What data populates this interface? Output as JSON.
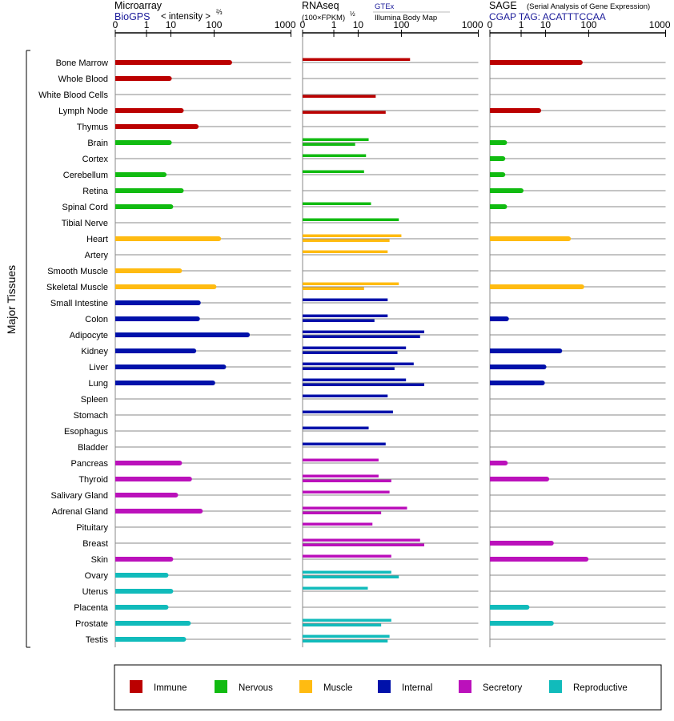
{
  "chart_data": {
    "type": "bar",
    "y_axis_label": "Major Tissues",
    "x_ticks": [
      "0",
      "1",
      "10",
      "100",
      "1000"
    ],
    "categories": [
      "Bone Marrow",
      "Whole Blood",
      "White Blood Cells",
      "Lymph Node",
      "Thymus",
      "Brain",
      "Cortex",
      "Cerebellum",
      "Retina",
      "Spinal Cord",
      "Tibial Nerve",
      "Heart",
      "Artery",
      "Smooth Muscle",
      "Skeletal Muscle",
      "Small Intestine",
      "Colon",
      "Adipocyte",
      "Kidney",
      "Liver",
      "Lung",
      "Spleen",
      "Stomach",
      "Esophagus",
      "Bladder",
      "Pancreas",
      "Thyroid",
      "Salivary Gland",
      "Adrenal Gland",
      "Pituitary",
      "Breast",
      "Skin",
      "Ovary",
      "Uterus",
      "Placenta",
      "Prostate",
      "Testis"
    ],
    "groups": [
      "immune",
      "immune",
      "immune",
      "immune",
      "immune",
      "nervous",
      "nervous",
      "nervous",
      "nervous",
      "nervous",
      "nervous",
      "muscle",
      "muscle",
      "muscle",
      "muscle",
      "internal",
      "internal",
      "internal",
      "internal",
      "internal",
      "internal",
      "internal",
      "internal",
      "internal",
      "internal",
      "secretory",
      "secretory",
      "secretory",
      "secretory",
      "secretory",
      "secretory",
      "secretory",
      "reproductive",
      "reproductive",
      "reproductive",
      "reproductive",
      "reproductive"
    ],
    "panels": [
      {
        "title": "Microarray",
        "source": "BioGPS",
        "scale_label": "< intensity >",
        "scale_exponent": "⅔",
        "series": [
          {
            "values": [
              180,
              9,
              null,
              20,
              45,
              9,
              null,
              6,
              20,
              10,
              null,
              120,
              null,
              18,
              100,
              50,
              48,
              320,
              40,
              145,
              95,
              null,
              null,
              null,
              null,
              18,
              32,
              14,
              55,
              null,
              null,
              10,
              7,
              10,
              7,
              30,
              23
            ]
          }
        ]
      },
      {
        "title": "RNAseq",
        "scale_label": "(100×FPKM)",
        "scale_exponent": "½",
        "source_top": "GTEx",
        "source_bottom": "Illumina Body Map",
        "series": [
          {
            "name": "GTEx",
            "values": [
              140,
              null,
              null,
              null,
              null,
              20,
              17,
              15,
              null,
              23,
              90,
              100,
              55,
              null,
              90,
              55,
              55,
              230,
              120,
              160,
              120,
              55,
              70,
              20,
              50,
              35,
              35,
              60,
              125,
              25,
              200,
              65,
              65,
              19,
              null,
              65,
              60
            ]
          },
          {
            "name": "Illumina Body Map",
            "values": [
              null,
              null,
              30,
              50,
              null,
              8,
              null,
              null,
              null,
              null,
              null,
              60,
              null,
              null,
              15,
              null,
              28,
              200,
              85,
              75,
              230,
              null,
              null,
              null,
              null,
              null,
              65,
              null,
              40,
              null,
              230,
              null,
              90,
              null,
              null,
              40,
              55
            ]
          }
        ]
      },
      {
        "title": "SAGE",
        "subtitle": "(Serial Analysis of Gene Expression)",
        "tag": "CGAP TAG: ACATTTCCAA",
        "series": [
          {
            "values": [
              70,
              null,
              null,
              6,
              null,
              0.05,
              0.03,
              0.03,
              1,
              0.05,
              null,
              40,
              null,
              null,
              75,
              null,
              0.08,
              null,
              25,
              9,
              8,
              null,
              null,
              null,
              null,
              0.06,
              11,
              null,
              null,
              null,
              15,
              90,
              null,
              null,
              2,
              15,
              null
            ]
          }
        ]
      }
    ],
    "legend": [
      {
        "label": "Immune",
        "key": "immune"
      },
      {
        "label": "Nervous",
        "key": "nervous"
      },
      {
        "label": "Muscle",
        "key": "muscle"
      },
      {
        "label": "Internal",
        "key": "internal"
      },
      {
        "label": "Secretory",
        "key": "secretory"
      },
      {
        "label": "Reproductive",
        "key": "reproductive"
      }
    ],
    "colors": {
      "immune": "#bb0000",
      "nervous": "#11bb11",
      "muscle": "#ffbb11",
      "internal": "#0011aa",
      "secretory": "#bb11bb",
      "reproductive": "#11bbbb",
      "title_blue": "#1a1a99"
    },
    "grid": true,
    "legend_position": "bottom"
  }
}
